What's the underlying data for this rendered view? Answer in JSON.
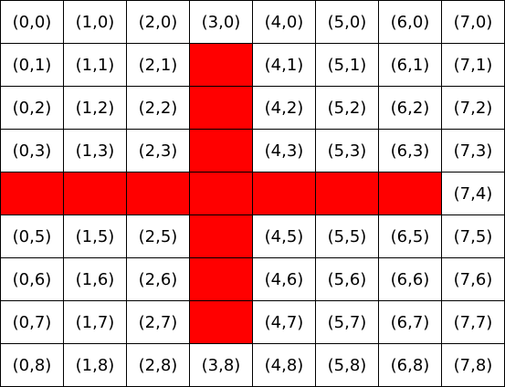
{
  "grid": {
    "columns": 8,
    "rows": 9,
    "colors": {
      "highlight": "#ff0000",
      "empty": "#ffffff",
      "border": "#000000",
      "text": "#000000"
    },
    "cells": [
      [
        "(0,0)",
        "(1,0)",
        "(2,0)",
        "(3,0)",
        "(4,0)",
        "(5,0)",
        "(6,0)",
        "(7,0)"
      ],
      [
        "(0,1)",
        "(1,1)",
        "(2,1)",
        "",
        "(4,1)",
        "(5,1)",
        "(6,1)",
        "(7,1)"
      ],
      [
        "(0,2)",
        "(1,2)",
        "(2,2)",
        "",
        "(4,2)",
        "(5,2)",
        "(6,2)",
        "(7,2)"
      ],
      [
        "(0,3)",
        "(1,3)",
        "(2,3)",
        "",
        "(4,3)",
        "(5,3)",
        "(6,3)",
        "(7,3)"
      ],
      [
        "",
        "",
        "",
        "",
        "",
        "",
        "",
        "(7,4)"
      ],
      [
        "(0,5)",
        "(1,5)",
        "(2,5)",
        "",
        "(4,5)",
        "(5,5)",
        "(6,5)",
        "(7,5)"
      ],
      [
        "(0,6)",
        "(1,6)",
        "(2,6)",
        "",
        "(4,6)",
        "(5,6)",
        "(6,6)",
        "(7,6)"
      ],
      [
        "(0,7)",
        "(1,7)",
        "(2,7)",
        "",
        "(4,7)",
        "(5,7)",
        "(6,7)",
        "(7,7)"
      ],
      [
        "(0,8)",
        "(1,8)",
        "(2,8)",
        "(3,8)",
        "(4,8)",
        "(5,8)",
        "(6,8)",
        "(7,8)"
      ]
    ],
    "highlighted": [
      [
        3,
        1
      ],
      [
        3,
        2
      ],
      [
        3,
        3
      ],
      [
        0,
        4
      ],
      [
        1,
        4
      ],
      [
        2,
        4
      ],
      [
        3,
        4
      ],
      [
        4,
        4
      ],
      [
        5,
        4
      ],
      [
        6,
        4
      ],
      [
        3,
        5
      ],
      [
        3,
        6
      ],
      [
        3,
        7
      ]
    ]
  }
}
